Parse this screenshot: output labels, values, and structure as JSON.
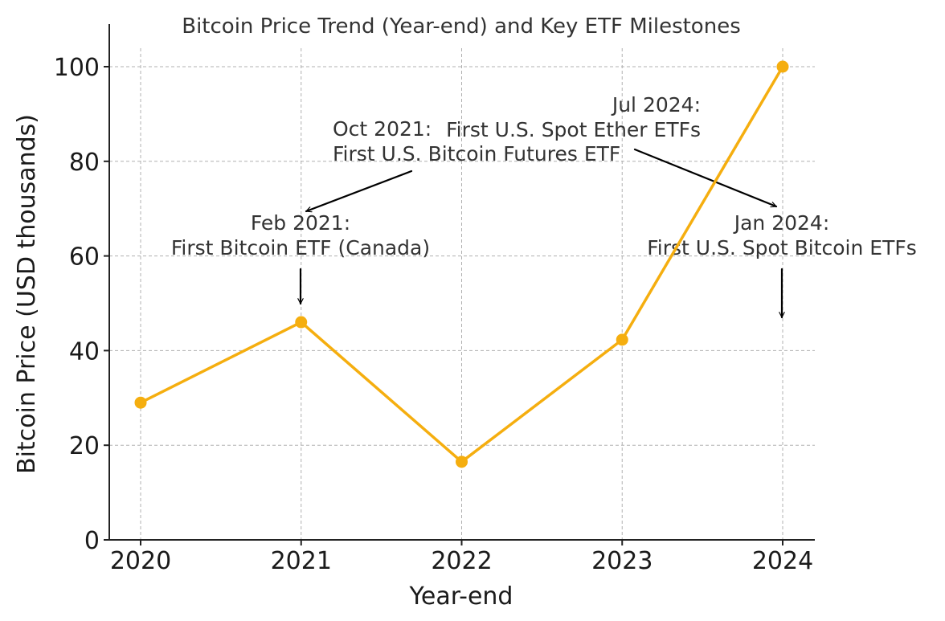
{
  "chart_data": {
    "type": "line",
    "title": "Bitcoin Price Trend (Year-end) and Key ETF Milestones",
    "xlabel": "Year-end",
    "ylabel": "Bitcoin Price (USD thousands)",
    "categories": [
      "2020",
      "2021",
      "2022",
      "2023",
      "2024"
    ],
    "y_ticks": [
      "0",
      "20",
      "40",
      "60",
      "80",
      "100"
    ],
    "ylim": [
      0,
      100
    ],
    "grid": true,
    "series": [
      {
        "values": [
          29.0,
          46.0,
          16.5,
          42.3,
          100.0
        ],
        "color": "#f5ae0f",
        "marker": "circle"
      }
    ],
    "annotations": [
      {
        "lines": [
          "Feb 2021:",
          "First Bitcoin ETF (Canada)"
        ],
        "points_to": "2021"
      },
      {
        "lines": [
          "Oct 2021:",
          "First U.S. Bitcoin Futures ETF"
        ],
        "points_to": "2021"
      },
      {
        "lines": [
          "Jan 2024:",
          "First U.S. Spot Bitcoin ETFs"
        ],
        "points_to": "2024"
      },
      {
        "lines": [
          "Jul 2024:",
          "First U.S. Spot Ether ETFs"
        ],
        "points_to": "2024"
      }
    ]
  }
}
